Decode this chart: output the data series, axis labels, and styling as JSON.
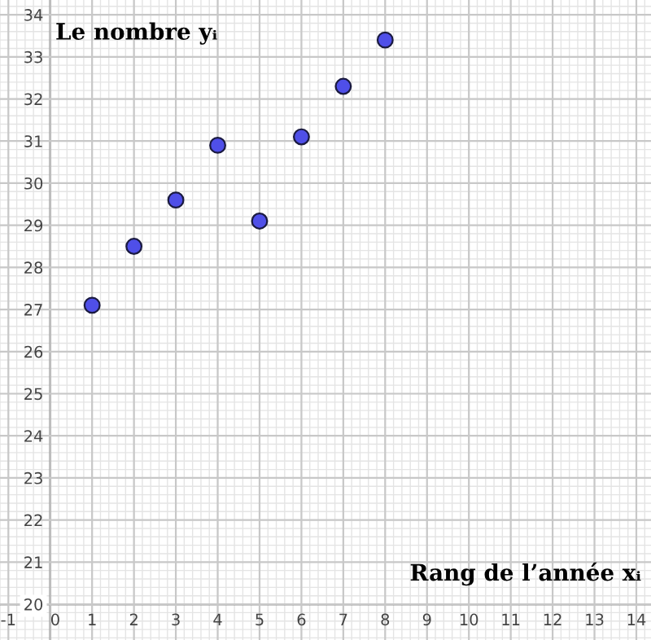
{
  "chart_data": {
    "type": "scatter",
    "xlabel": "Rang de l’année xᵢ",
    "ylabel": "Le nombre yᵢ",
    "x": [
      1,
      2,
      3,
      4,
      5,
      6,
      7,
      8
    ],
    "series": [
      {
        "color": "#4f4fe8",
        "values": [
          27.1,
          28.5,
          29.6,
          30.9,
          29.1,
          31.1,
          32.3,
          33.4
        ]
      }
    ],
    "xlim": [
      -1.2,
      14.35
    ],
    "ylim": [
      19.15,
      34.35
    ],
    "xticks": [
      -1,
      0,
      1,
      2,
      3,
      4,
      5,
      6,
      7,
      8,
      9,
      10,
      11,
      12,
      13,
      14
    ],
    "yticks": [
      20,
      21,
      22,
      23,
      24,
      25,
      26,
      27,
      28,
      29,
      30,
      31,
      32,
      33,
      34
    ],
    "grid": true,
    "marker": "circle",
    "legend": false
  }
}
